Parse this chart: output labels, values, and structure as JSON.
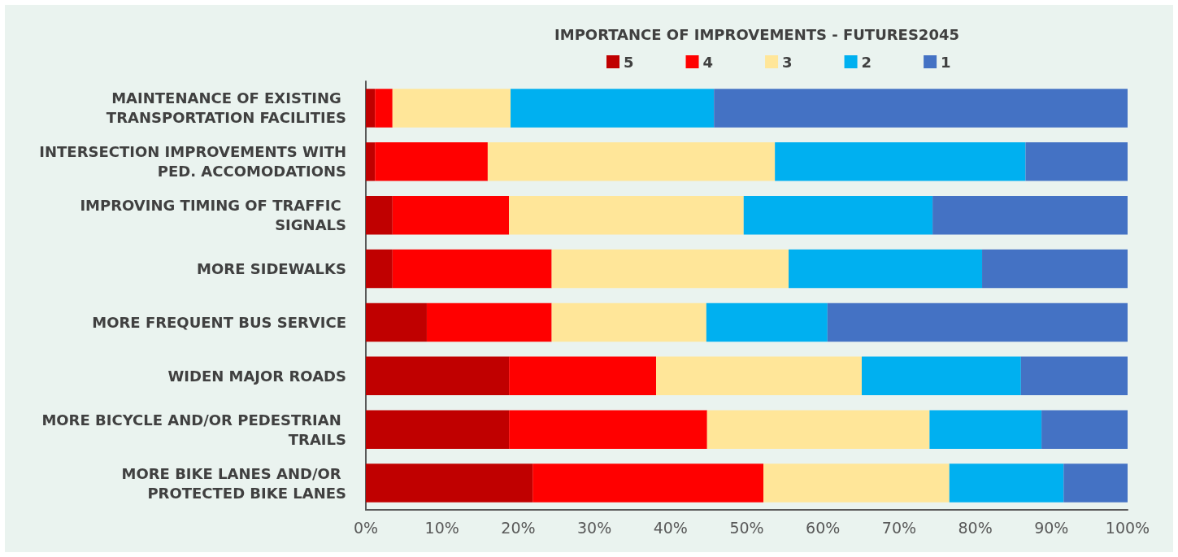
{
  "chart_data": {
    "type": "bar",
    "orientation": "horizontal",
    "stacked": true,
    "title": "IMPORTANCE OF IMPROVEMENTS - FUTURES2045",
    "categories": [
      "MAINTENANCE OF EXISTING TRANSPORTATION FACILITIES",
      "INTERSECTION IMPROVEMENTS WITH PED. ACCOMODATIONS",
      "IMPROVING TIMING OF TRAFFIC SIGNALS",
      "MORE SIDEWALKS",
      "MORE FREQUENT BUS SERVICE",
      "WIDEN MAJOR ROADS",
      "MORE BICYCLE AND/OR PEDESTRIAN TRAILS",
      "MORE BIKE LANES AND/OR PROTECTED BIKE LANES"
    ],
    "series": [
      {
        "name": "5",
        "color": "#c00000",
        "values": [
          1.2,
          1.2,
          3.5,
          3.5,
          8.0,
          18.8,
          18.8,
          21.9
        ]
      },
      {
        "name": "4",
        "color": "#ff0000",
        "values": [
          2.3,
          14.8,
          15.3,
          20.9,
          16.4,
          19.3,
          26.0,
          30.3
        ]
      },
      {
        "name": "3",
        "color": "#ffe699",
        "values": [
          15.5,
          37.7,
          30.8,
          31.1,
          20.3,
          27.0,
          29.2,
          24.4
        ]
      },
      {
        "name": "2",
        "color": "#00b0f0",
        "values": [
          26.7,
          32.9,
          24.8,
          25.4,
          15.9,
          20.9,
          14.7,
          15.0
        ]
      },
      {
        "name": "1",
        "color": "#4472c4",
        "values": [
          54.3,
          13.4,
          25.6,
          19.1,
          39.4,
          14.0,
          11.3,
          8.4
        ]
      }
    ],
    "xlim": [
      0,
      100
    ],
    "xticks": [
      {
        "value": 0,
        "label": "0%"
      },
      {
        "value": 10,
        "label": "10%"
      },
      {
        "value": 20,
        "label": "20%"
      },
      {
        "value": 30,
        "label": "30%"
      },
      {
        "value": 40,
        "label": "40%"
      },
      {
        "value": 50,
        "label": "50%"
      },
      {
        "value": 60,
        "label": "60%"
      },
      {
        "value": 70,
        "label": "70%"
      },
      {
        "value": 80,
        "label": "80%"
      },
      {
        "value": 90,
        "label": "90%"
      },
      {
        "value": 100,
        "label": "100%"
      }
    ],
    "grid": false,
    "legend": "top"
  }
}
